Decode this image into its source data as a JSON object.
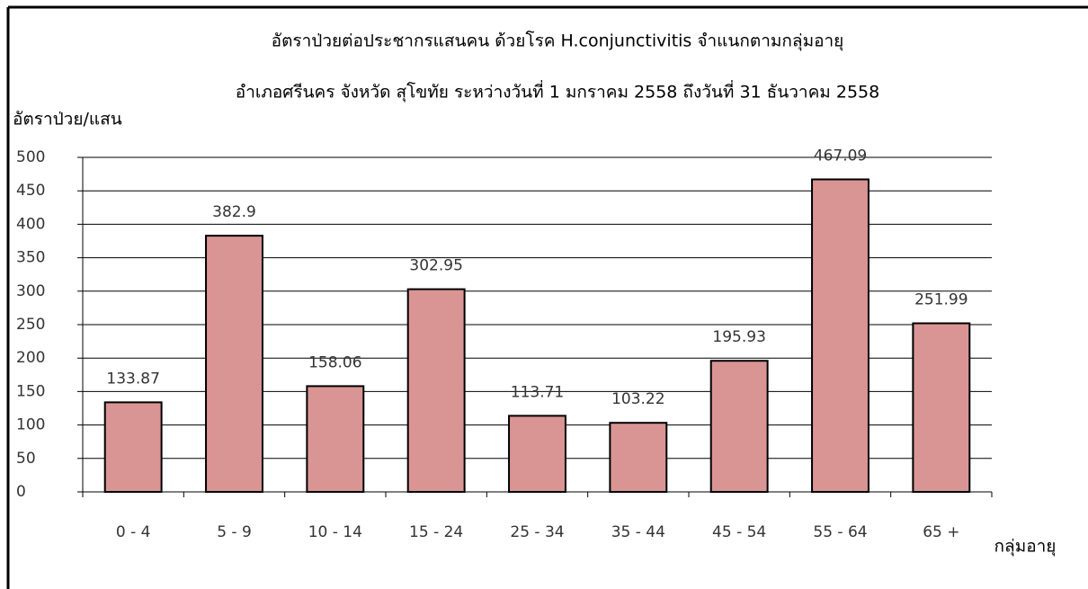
{
  "chart_data": {
    "type": "bar",
    "title": "อัตราป่วยต่อประชากรแสนคน ด้วยโรค H.conjunctivitis  จำแนกตามกลุ่มอายุ",
    "subtitle": "อำเภอศรีนคร จังหวัด สุโขทัย  ระหว่างวันที่  1 มกราคม 2558  ถึงวันที่  31 ธันวาคม 2558",
    "y_label": "อัตราป่วย/แสน",
    "x_label": "กลุ่มอายุ",
    "categories": [
      "0 - 4",
      "5 - 9",
      "10 - 14",
      "15 - 24",
      "25 - 34",
      "35 - 44",
      "45 - 54",
      "55 - 64",
      "65 +"
    ],
    "values": [
      133.87,
      382.9,
      158.06,
      302.95,
      113.71,
      103.22,
      195.93,
      467.09,
      251.99
    ],
    "color": "#d99594",
    "ylim": [
      0,
      500
    ],
    "yticks": [
      0,
      50,
      100,
      150,
      200,
      250,
      300,
      350,
      400,
      450,
      500
    ],
    "grid": true
  }
}
